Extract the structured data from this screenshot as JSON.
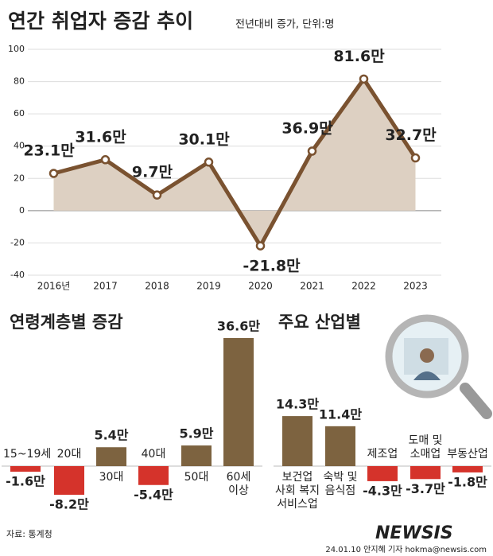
{
  "chart_data": [
    {
      "type": "line",
      "title": "연간 취업자 증감 추이",
      "subtitle": "전년대비 증가, 단위:명",
      "categories": [
        "2016년",
        "2017",
        "2018",
        "2019",
        "2020",
        "2021",
        "2022",
        "2023"
      ],
      "values": [
        23.1,
        31.6,
        9.7,
        30.1,
        -21.8,
        36.9,
        81.6,
        32.7
      ],
      "value_labels": [
        "23.1만",
        "31.6만",
        "9.7만",
        "30.1만",
        "-21.8만",
        "36.9만",
        "81.6만",
        "32.7만"
      ],
      "color": "#7a5230",
      "area_color": "#ddd0c2",
      "ylim": [
        -40,
        100
      ],
      "yticks": [
        -40,
        -20,
        0,
        20,
        40,
        60,
        80,
        100
      ],
      "grid": true
    },
    {
      "type": "bar",
      "title": "연령계층별 증감",
      "categories": [
        "15~19세",
        "20대",
        "30대",
        "40대",
        "50대",
        "60세 이상"
      ],
      "values": [
        -1.6,
        -8.2,
        5.4,
        -5.4,
        5.9,
        36.6
      ],
      "value_labels": [
        "-1.6만",
        "-8.2만",
        "5.4만",
        "-5.4만",
        "5.9만",
        "36.6만"
      ],
      "positive_color": "#7d6340",
      "negative_color": "#d5332b"
    },
    {
      "type": "bar",
      "title": "주요 산업별",
      "categories": [
        "보건업 사회 복지 서비스업",
        "숙박 및 음식점",
        "제조업",
        "도매 및 소매업",
        "부동산업"
      ],
      "values": [
        14.3,
        11.4,
        -4.3,
        -3.7,
        -1.8
      ],
      "value_labels": [
        "14.3만",
        "11.4만",
        "-4.3만",
        "-3.7만",
        "-1.8만"
      ],
      "positive_color": "#7d6340",
      "negative_color": "#d5332b"
    }
  ],
  "footer": {
    "source": "자료: 통계청",
    "logo": "NEWSIS",
    "credit": "24.01.10 안지혜 기자 hokma@newsis.com"
  }
}
